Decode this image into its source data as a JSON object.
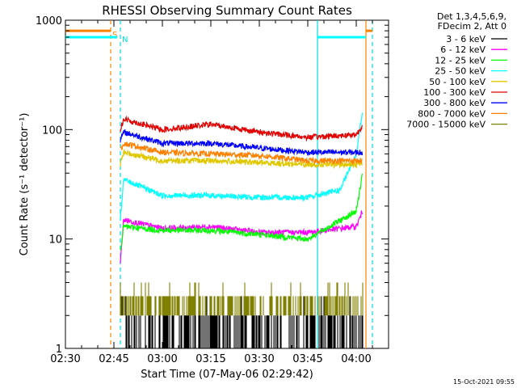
{
  "chart_data": {
    "type": "line",
    "title": "RHESSI Observing Summary Count Rates",
    "xlabel": "Start Time (07-May-06 02:29:42)",
    "ylabel": "Count Rate (s⁻¹ detector⁻¹)",
    "y_scale": "log",
    "ylim": [
      1,
      1000
    ],
    "xlim": [
      "02:30",
      "04:10"
    ],
    "x_ticks": [
      "02:30",
      "02:45",
      "03:00",
      "03:15",
      "03:30",
      "03:45",
      "04:00"
    ],
    "y_ticks": [
      "1",
      "10",
      "100",
      "1000"
    ],
    "grid": false,
    "legend_position": "right",
    "legend_header": [
      "Det 1,3,4,5,6,9,",
      "FDecim 2, Att 0"
    ],
    "markers": [
      {
        "label": "S",
        "time": "02:44",
        "color": "#ff8000",
        "style": "dashed"
      },
      {
        "label": "N",
        "time": "02:47",
        "color": "#00e0e0",
        "style": "dashed"
      },
      {
        "label": "",
        "time": "03:48",
        "color": "#00e0e0",
        "style": "solid"
      },
      {
        "label": "",
        "time": "04:03",
        "color": "#ff8000",
        "style": "solid"
      },
      {
        "label": "",
        "time": "04:05",
        "color": "#00e0e0",
        "style": "dashed"
      }
    ],
    "series": [
      {
        "name": "3 - 6 keV",
        "color": "#000000",
        "x": [
          "02:47",
          "03:00",
          "03:15",
          "03:30",
          "03:45",
          "04:02"
        ],
        "y": [
          2,
          1.5,
          1.5,
          1.5,
          1.5,
          1.5
        ]
      },
      {
        "name": "6 - 12 keV",
        "color": "#ff00ff",
        "x": [
          "02:47",
          "02:48",
          "03:00",
          "03:15",
          "03:30",
          "03:45",
          "04:00",
          "04:02"
        ],
        "y": [
          6,
          15,
          12.5,
          13,
          11.5,
          11.5,
          13,
          18
        ]
      },
      {
        "name": "12 - 25 keV",
        "color": "#00ff00",
        "x": [
          "02:47",
          "02:48",
          "03:00",
          "03:15",
          "03:30",
          "03:45",
          "04:00",
          "04:02"
        ],
        "y": [
          8,
          13,
          12,
          12,
          11,
          10,
          18,
          40
        ]
      },
      {
        "name": "25 - 50 keV",
        "color": "#00ffff",
        "x": [
          "02:47",
          "02:48",
          "03:00",
          "03:15",
          "03:30",
          "03:45",
          "03:55",
          "04:00",
          "04:02"
        ],
        "y": [
          15,
          35,
          25,
          25,
          24,
          24,
          28,
          60,
          150
        ]
      },
      {
        "name": "50 - 100 keV",
        "color": "#e0c800",
        "x": [
          "02:47",
          "02:48",
          "03:00",
          "03:15",
          "03:30",
          "03:45",
          "04:00",
          "04:02"
        ],
        "y": [
          48,
          62,
          52,
          52,
          50,
          48,
          48,
          50
        ]
      },
      {
        "name": "100 - 300 keV",
        "color": "#e00000",
        "x": [
          "02:47",
          "02:48",
          "03:00",
          "03:10",
          "03:15",
          "03:30",
          "03:45",
          "04:00",
          "04:02"
        ],
        "y": [
          100,
          125,
          100,
          108,
          112,
          95,
          85,
          90,
          110
        ]
      },
      {
        "name": "300 - 800 keV",
        "color": "#0000ff",
        "x": [
          "02:47",
          "02:48",
          "03:00",
          "03:15",
          "03:30",
          "03:45",
          "04:00",
          "04:02"
        ],
        "y": [
          80,
          95,
          75,
          75,
          68,
          62,
          62,
          62
        ]
      },
      {
        "name": "800 - 7000 keV",
        "color": "#ff8000",
        "x": [
          "02:47",
          "02:48",
          "03:00",
          "03:15",
          "03:30",
          "03:45",
          "04:00",
          "04:02"
        ],
        "y": [
          65,
          75,
          62,
          60,
          58,
          52,
          52,
          52
        ]
      },
      {
        "name": "7000 - 15000 keV",
        "color": "#808000",
        "x": [
          "02:47",
          "03:00",
          "03:15",
          "03:30",
          "03:45",
          "04:02"
        ],
        "y": [
          3,
          3,
          3,
          3,
          3,
          3
        ]
      }
    ],
    "pre_data_levels": [
      {
        "series": "800 - 7000 keV",
        "x": [
          "02:30",
          "02:44"
        ],
        "y": [
          800,
          800
        ],
        "color": "#ff8000"
      },
      {
        "series": "25 - 50 keV",
        "x": [
          "02:30",
          "02:46"
        ],
        "y": [
          700,
          700
        ],
        "color": "#00ffff"
      },
      {
        "series": "800 - 7000 keV",
        "x": [
          "04:03",
          "04:05"
        ],
        "y": [
          800,
          800
        ],
        "color": "#ff8000"
      },
      {
        "series": "25 - 50 keV",
        "x": [
          "03:48",
          "04:03"
        ],
        "y": [
          700,
          700
        ],
        "color": "#00ffff"
      }
    ]
  },
  "footer": {
    "timestamp": "15-Oct-2021 09:55"
  }
}
